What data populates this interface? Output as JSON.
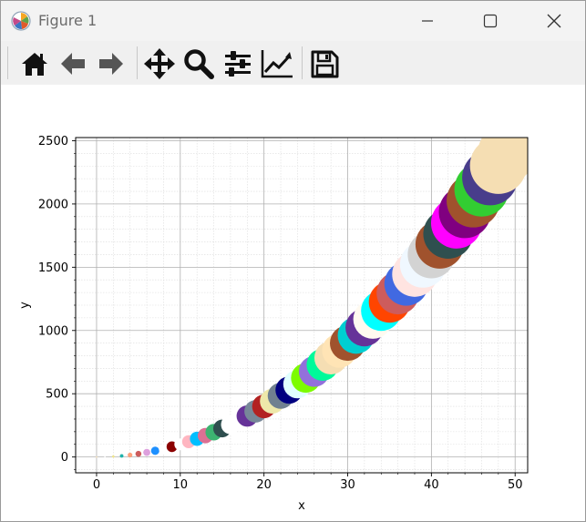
{
  "window": {
    "title": "Figure 1"
  },
  "toolbar": {
    "tools": [
      {
        "name": "home-icon"
      },
      {
        "name": "back-icon"
      },
      {
        "name": "forward-icon"
      },
      {
        "name": "pan-icon"
      },
      {
        "name": "zoom-icon"
      },
      {
        "name": "configure-subplots-icon"
      },
      {
        "name": "edit-axis-icon"
      },
      {
        "name": "save-icon"
      }
    ]
  },
  "chart_data": {
    "type": "scatter",
    "title": "",
    "xlabel": "x",
    "ylabel": "y",
    "xlim": [
      -2.5,
      51.5
    ],
    "ylim": [
      -125,
      2525
    ],
    "xticks": [
      "0",
      "10",
      "20",
      "30",
      "40",
      "50"
    ],
    "yticks": [
      "0",
      "500",
      "1000",
      "1500",
      "2000",
      "2500"
    ],
    "grid": "major and minor",
    "marker_size": "grows with x",
    "x": [
      0,
      1,
      2,
      3,
      4,
      5,
      6,
      7,
      8,
      9,
      10,
      11,
      12,
      13,
      14,
      15,
      16,
      17,
      18,
      19,
      20,
      21,
      22,
      23,
      24,
      25,
      26,
      27,
      28,
      29,
      30,
      31,
      32,
      33,
      34,
      35,
      36,
      37,
      38,
      39,
      40,
      41,
      42,
      43,
      44,
      45,
      46,
      47,
      48,
      49
    ],
    "y": [
      0,
      1,
      4,
      9,
      16,
      25,
      36,
      49,
      64,
      81,
      100,
      121,
      144,
      169,
      196,
      225,
      256,
      289,
      324,
      361,
      400,
      441,
      484,
      529,
      576,
      625,
      676,
      729,
      784,
      841,
      900,
      961,
      1024,
      1089,
      1156,
      1225,
      1296,
      1369,
      1444,
      1521,
      1600,
      1681,
      1764,
      1849,
      1936,
      2025,
      2116,
      2209,
      2304,
      2401
    ],
    "colors": [
      "#f5deb3",
      "#ffffff",
      "#f0e68c",
      "#20b2aa",
      "#ffa07a",
      "#cd5c5c",
      "#dda0dd",
      "#1e90ff",
      "#ffffff",
      "#8b0000",
      "#ffffff",
      "#ffb6c1",
      "#00bfff",
      "#db7093",
      "#3cb371",
      "#2f4f4f",
      "#ffffff",
      "#ffffff",
      "#663399",
      "#778899",
      "#b22222",
      "#eee8aa",
      "#708090",
      "#000080",
      "#e0ffff",
      "#7cfc00",
      "#9370db",
      "#00fa9a",
      "#f5deb3",
      "#ffe4b5",
      "#a0522d",
      "#00ced1",
      "#663399",
      "#fffaf0",
      "#00ffff",
      "#ff4500",
      "#cd5c5c",
      "#4169e1",
      "#ffe4e1",
      "#f0f8ff",
      "#d3d3d3",
      "#a0522d",
      "#2f4f4f",
      "#ff00ff",
      "#800080",
      "#a0522d",
      "#32cd32",
      "#483d8b",
      "#f5deb3",
      "#f5deb3"
    ]
  }
}
